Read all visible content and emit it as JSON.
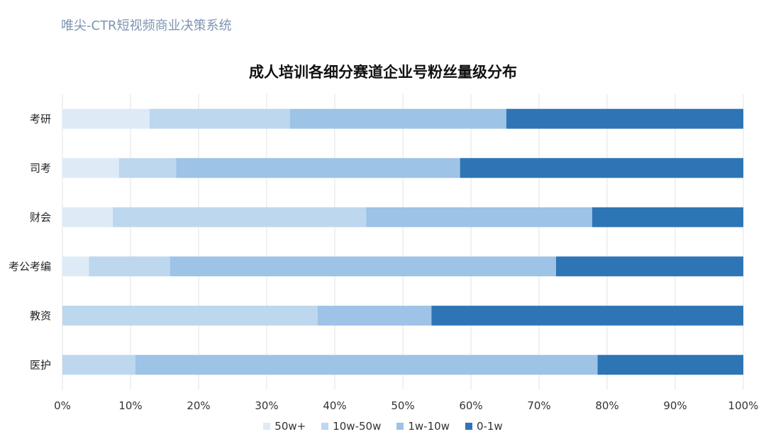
{
  "watermark": "唯尖-CTR短视频商业决策系统",
  "chart_data": {
    "type": "bar",
    "orientation": "horizontal",
    "stacked": "percent",
    "title": "成人培训各细分赛道企业号粉丝量级分布",
    "categories": [
      "考研",
      "司考",
      "财会",
      "考公考编",
      "教资",
      "医护"
    ],
    "series": [
      {
        "name": "50w+",
        "color": "#deebf7",
        "values": [
          12.8,
          8.3,
          7.4,
          3.9,
          0.0,
          0.0
        ]
      },
      {
        "name": "10w-50w",
        "color": "#bdd7ee",
        "values": [
          20.6,
          8.4,
          37.2,
          11.9,
          37.5,
          10.7
        ]
      },
      {
        "name": "1w-10w",
        "color": "#9dc3e6",
        "values": [
          31.8,
          41.7,
          33.2,
          56.7,
          16.7,
          67.9
        ]
      },
      {
        "name": "0-1w",
        "color": "#2e75b6",
        "values": [
          34.8,
          41.6,
          22.2,
          27.5,
          45.8,
          21.4
        ]
      }
    ],
    "xlim": [
      0,
      100
    ],
    "x_ticks": [
      "0%",
      "10%",
      "20%",
      "30%",
      "40%",
      "50%",
      "60%",
      "70%",
      "80%",
      "90%",
      "100%"
    ],
    "grid": "vertical",
    "legend": "bottom"
  }
}
